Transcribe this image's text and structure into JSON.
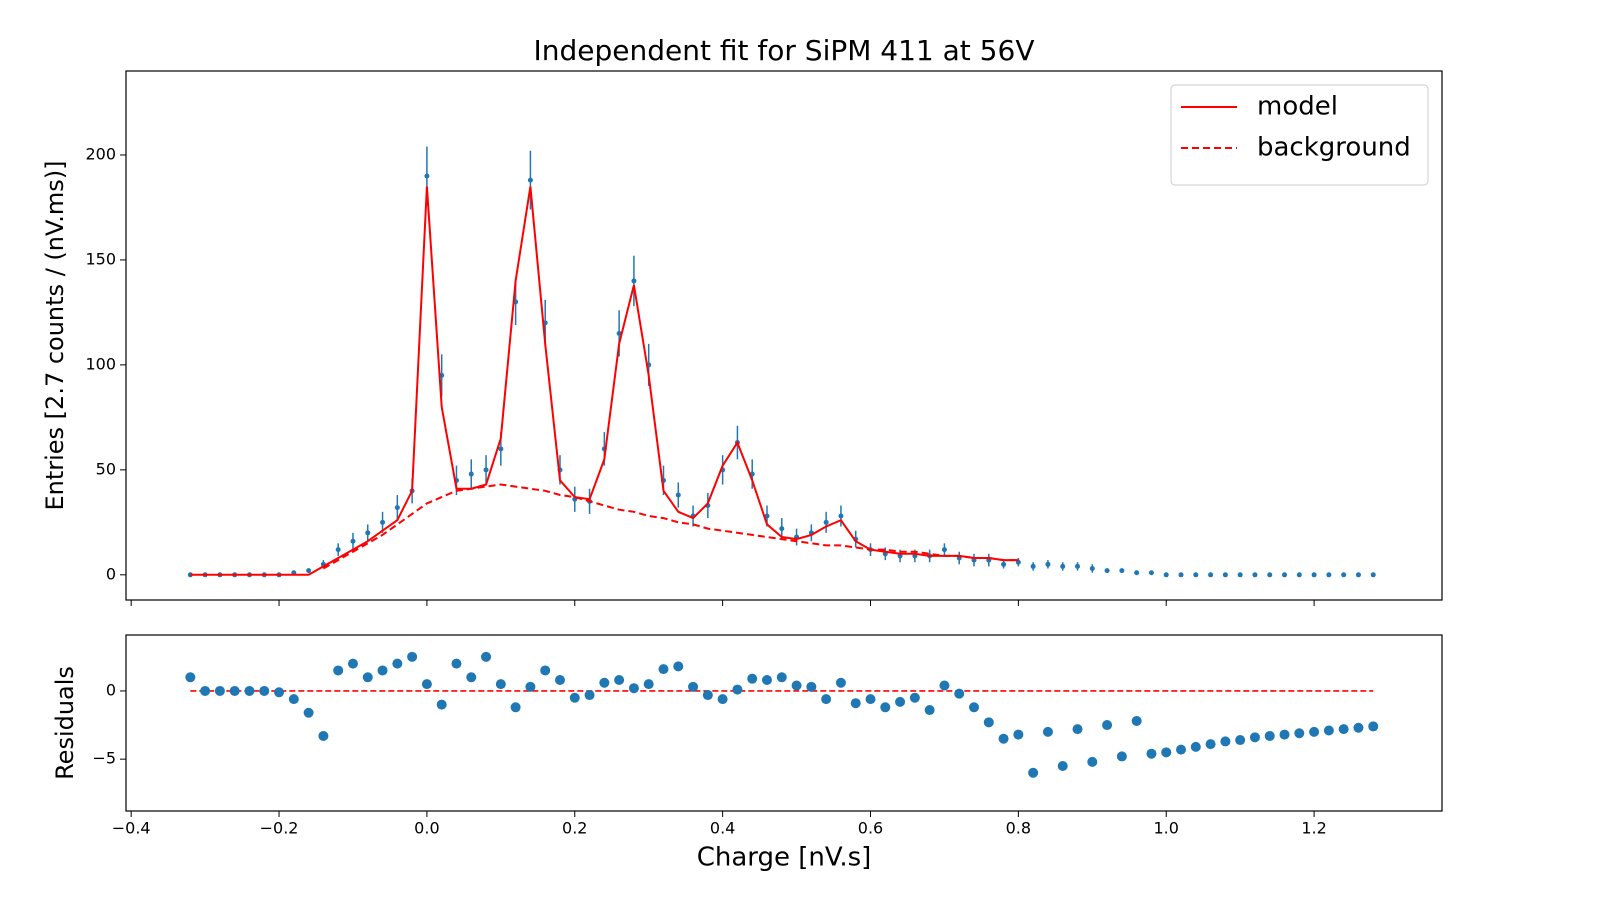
{
  "chart_data": [
    {
      "type": "errorbar",
      "title": "Independent fit for SiPM 411 at 56V",
      "ylabel": "Entries [2.7 counts / (nV.ms)]",
      "xlim": [
        -0.407,
        1.373
      ],
      "ylim": [
        -12,
        240
      ],
      "xticks": [
        -0.4,
        -0.2,
        0.0,
        0.2,
        0.4,
        0.6,
        0.8,
        1.0,
        1.2
      ],
      "xtick_labels": false,
      "yticks": [
        0,
        50,
        100,
        150,
        200
      ],
      "legend": "upper right",
      "x": [
        -0.32,
        -0.3,
        -0.28,
        -0.26,
        -0.24,
        -0.22,
        -0.2,
        -0.18,
        -0.16,
        -0.14,
        -0.12,
        -0.1,
        -0.08,
        -0.06,
        -0.04,
        -0.02,
        0,
        0.02,
        0.04,
        0.06,
        0.08,
        0.1,
        0.12,
        0.14,
        0.16,
        0.18,
        0.2,
        0.22,
        0.24,
        0.26,
        0.28,
        0.3,
        0.32,
        0.34,
        0.36,
        0.38,
        0.4,
        0.42,
        0.44,
        0.46,
        0.48,
        0.5,
        0.52,
        0.54,
        0.56,
        0.58,
        0.6,
        0.62,
        0.64,
        0.66,
        0.68,
        0.7,
        0.72,
        0.74,
        0.76,
        0.78,
        0.8,
        0.82,
        0.84,
        0.86,
        0.88,
        0.9,
        0.92,
        0.94,
        0.96,
        0.98,
        1,
        1.02,
        1.04,
        1.06,
        1.08,
        1.1,
        1.12,
        1.14,
        1.16,
        1.18,
        1.2,
        1.22,
        1.24,
        1.26,
        1.28
      ],
      "series": [
        {
          "style": "points",
          "color": "#1f77b4",
          "values": [
            0,
            0,
            0,
            0,
            0,
            0,
            0,
            1,
            2,
            5,
            12,
            16,
            20,
            25,
            32,
            40,
            190,
            95,
            45,
            48,
            50,
            60,
            130,
            188,
            120,
            50,
            36,
            35,
            60,
            115,
            140,
            100,
            45,
            38,
            28,
            33,
            50,
            63,
            48,
            28,
            22,
            18,
            20,
            25,
            28,
            17,
            12,
            10,
            9,
            9,
            9,
            12,
            8,
            7,
            7,
            5,
            6,
            4,
            5,
            4,
            4,
            3,
            2,
            2,
            1,
            1,
            0,
            0,
            0,
            0,
            0,
            0,
            0,
            0,
            0,
            0,
            0,
            0,
            0,
            0,
            0
          ],
          "errors": [
            0,
            0,
            0,
            0,
            0,
            0,
            0,
            1,
            1,
            2,
            3,
            4,
            4,
            5,
            6,
            6,
            14,
            10,
            7,
            7,
            7,
            8,
            11,
            14,
            11,
            7,
            6,
            6,
            8,
            11,
            12,
            10,
            7,
            6,
            5,
            6,
            7,
            8,
            7,
            5,
            5,
            4,
            4,
            5,
            5,
            4,
            3,
            3,
            3,
            3,
            3,
            3,
            3,
            3,
            3,
            2,
            2,
            2,
            2,
            2,
            2,
            2,
            1,
            1,
            1,
            1,
            0,
            0,
            0,
            0,
            0,
            0,
            0,
            0,
            0,
            0,
            0,
            0,
            0,
            0,
            0
          ]
        },
        {
          "style": "line",
          "name": "model",
          "color": "#ff0000",
          "values": [
            0,
            0,
            0,
            0,
            0,
            0,
            0,
            0,
            0,
            4,
            8,
            12,
            16,
            21,
            26,
            40,
            185,
            80,
            41,
            41,
            43,
            65,
            140,
            185,
            110,
            45,
            37,
            36,
            55,
            110,
            138,
            95,
            40,
            30,
            27,
            34,
            52,
            63,
            45,
            24,
            18,
            17,
            19,
            23,
            26,
            16,
            12,
            11,
            10,
            10,
            9,
            9,
            9,
            8,
            8,
            7,
            7,
            null,
            null,
            null,
            null,
            null,
            null,
            null,
            null,
            null,
            null,
            null,
            null,
            null,
            null,
            null,
            null,
            null,
            null,
            null,
            null,
            null,
            null,
            null,
            null
          ]
        },
        {
          "style": "dashed",
          "name": "background",
          "color": "#ff0000",
          "values": [
            null,
            null,
            null,
            null,
            null,
            null,
            null,
            null,
            null,
            3,
            7,
            11,
            15,
            19,
            24,
            29,
            34,
            37,
            40,
            41,
            42,
            43,
            42,
            41,
            40,
            38,
            37,
            35,
            33,
            31,
            30,
            28,
            27,
            25,
            24,
            22,
            21,
            20,
            19,
            18,
            17,
            16,
            15,
            14,
            14,
            13,
            12,
            12,
            11,
            11,
            10,
            9,
            9,
            8,
            8,
            7,
            7,
            null,
            null,
            null,
            null,
            null,
            null,
            null,
            null,
            null,
            null,
            null,
            null,
            null,
            null,
            null,
            null,
            null,
            null,
            null,
            null,
            null,
            null,
            null,
            null
          ]
        }
      ]
    },
    {
      "type": "scatter",
      "ylabel": "Residuals",
      "xlabel": "Charge [nV.s]",
      "xlim": [
        -0.407,
        1.373
      ],
      "ylim": [
        -8.8,
        4.1
      ],
      "xticks": [
        {
          "value": -0.4,
          "label": "−0.4"
        },
        {
          "value": -0.2,
          "label": "−0.2"
        },
        {
          "value": 0.0,
          "label": "0.0"
        },
        {
          "value": 0.2,
          "label": "0.2"
        },
        {
          "value": 0.4,
          "label": "0.4"
        },
        {
          "value": 0.6,
          "label": "0.6"
        },
        {
          "value": 0.8,
          "label": "0.8"
        },
        {
          "value": 1.0,
          "label": "1.0"
        },
        {
          "value": 1.2,
          "label": "1.2"
        }
      ],
      "yticks": [
        {
          "value": -5,
          "label": "−5"
        },
        0
      ],
      "hline": 0,
      "hline_color": "#ff0000",
      "x": [
        -0.32,
        -0.3,
        -0.28,
        -0.26,
        -0.24,
        -0.22,
        -0.2,
        -0.18,
        -0.16,
        -0.14,
        -0.12,
        -0.1,
        -0.08,
        -0.06,
        -0.04,
        -0.02,
        0,
        0.02,
        0.04,
        0.06,
        0.08,
        0.1,
        0.12,
        0.14,
        0.16,
        0.18,
        0.2,
        0.22,
        0.24,
        0.26,
        0.28,
        0.3,
        0.32,
        0.34,
        0.36,
        0.38,
        0.4,
        0.42,
        0.44,
        0.46,
        0.48,
        0.5,
        0.52,
        0.54,
        0.56,
        0.58,
        0.6,
        0.62,
        0.64,
        0.66,
        0.68,
        0.7,
        0.72,
        0.74,
        0.76,
        0.78,
        0.8,
        0.82,
        0.84,
        0.86,
        0.88,
        0.9,
        0.92,
        0.94,
        0.96,
        0.98,
        1,
        1.02,
        1.04,
        1.06,
        1.08,
        1.1,
        1.12,
        1.14,
        1.16,
        1.18,
        1.2,
        1.22,
        1.24,
        1.26,
        1.28
      ],
      "series": [
        {
          "style": "points",
          "color": "#1f77b4",
          "values": [
            1,
            0,
            0,
            0,
            0,
            0,
            -0.1,
            -0.6,
            -1.6,
            -3.3,
            1.5,
            2,
            1,
            1.5,
            2,
            2.5,
            0.5,
            -1,
            2,
            1,
            2.5,
            0.5,
            -1.2,
            0.3,
            1.5,
            0.8,
            -0.5,
            -0.3,
            0.6,
            0.8,
            0.2,
            0.5,
            1.6,
            1.8,
            0.3,
            -0.3,
            -0.6,
            0.1,
            0.9,
            0.8,
            1,
            0.4,
            0.3,
            -0.6,
            0.6,
            -0.9,
            -0.6,
            -1.2,
            -0.8,
            -0.5,
            -1.4,
            0.4,
            -0.2,
            -1.2,
            -2.3,
            -3.5,
            -3.2,
            -6,
            -3,
            -5.5,
            -2.8,
            -5.2,
            -2.5,
            -4.8,
            -2.2,
            -4.6,
            -4.5,
            -4.3,
            -4.1,
            -3.9,
            -3.7,
            -3.6,
            -3.4,
            -3.3,
            -3.2,
            -3.1,
            -3,
            -2.9,
            -2.8,
            -2.7,
            -2.6
          ]
        }
      ]
    }
  ]
}
